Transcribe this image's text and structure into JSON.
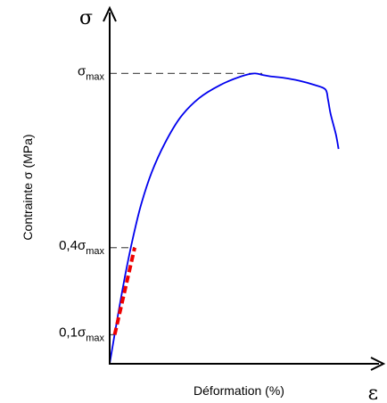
{
  "chart_data": {
    "type": "line",
    "title": "",
    "xlabel": "Déformation (%)",
    "ylabel": "Contrainte σ (MPa)",
    "x_axis_symbol": "ε",
    "y_axis_symbol": "σ",
    "xlim": [
      0,
      100
    ],
    "ylim": [
      0,
      1.21
    ],
    "grid": false,
    "y_ticks": [
      {
        "value": 0.1,
        "prefix": "0,1σ",
        "sub": "max"
      },
      {
        "value": 0.4,
        "prefix": "0,4σ",
        "sub": "max"
      },
      {
        "value": 1.0,
        "prefix": "σ",
        "sub": "max"
      }
    ],
    "series": [
      {
        "style": "solid",
        "color": "#0000ee",
        "x": [
          0,
          3,
          6,
          9,
          12,
          16,
          21,
          27,
          34,
          42,
          50,
          55,
          58,
          61,
          66,
          72,
          78,
          82,
          83,
          84,
          86,
          87
        ],
        "y": [
          0,
          0.16,
          0.31,
          0.44,
          0.55,
          0.66,
          0.76,
          0.85,
          0.915,
          0.96,
          0.99,
          1.0,
          0.995,
          0.99,
          0.985,
          0.975,
          0.96,
          0.945,
          0.91,
          0.86,
          0.79,
          0.74
        ]
      },
      {
        "style": "dashed",
        "color": "#ee0000",
        "x": [
          1.9,
          9.5
        ],
        "y": [
          0.1,
          0.4
        ]
      }
    ],
    "reference_lines": [
      {
        "style": "dashed",
        "color": "#555555",
        "y": 1.0,
        "x_to": 58
      },
      {
        "style": "dashed",
        "color": "#555555",
        "y": 0.4,
        "x_to": 9.5
      },
      {
        "style": "dashed",
        "color": "#555555",
        "y": 0.1,
        "x_to": 1.9
      }
    ]
  }
}
